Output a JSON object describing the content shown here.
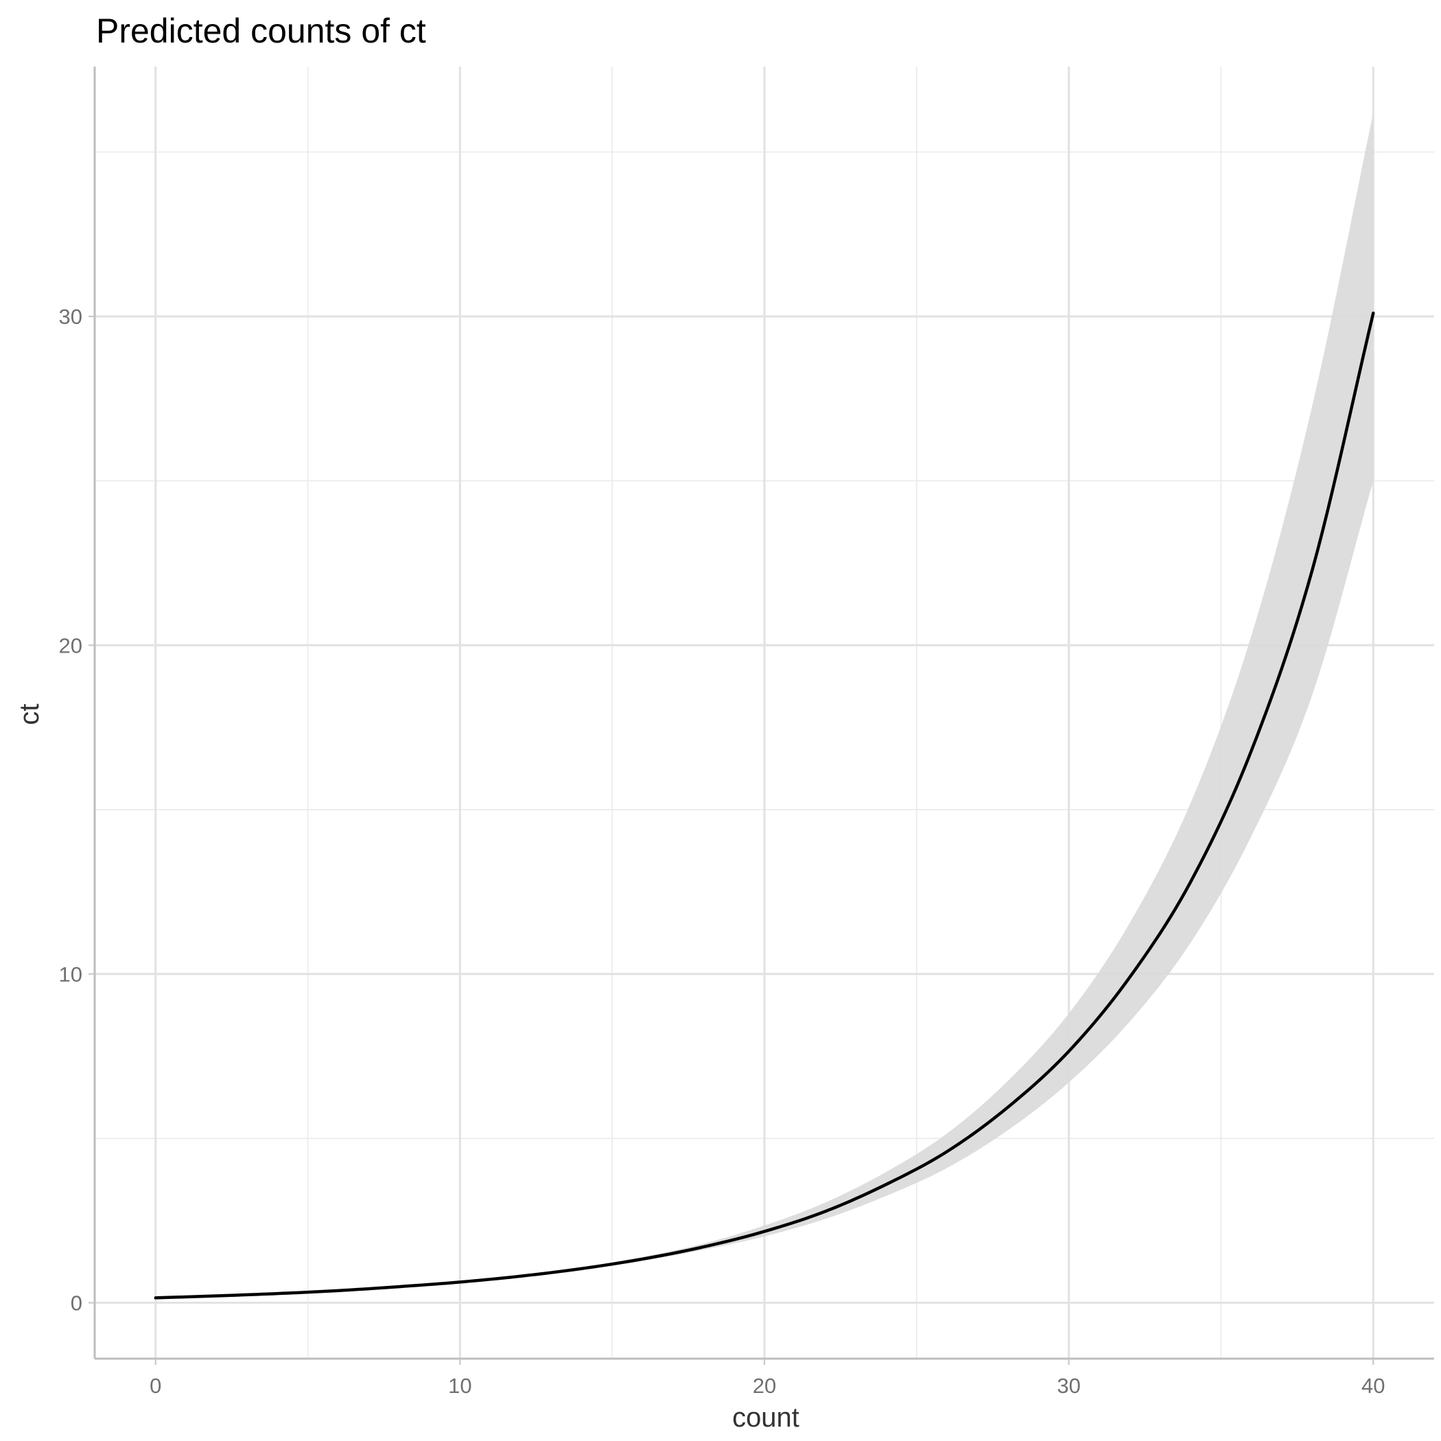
{
  "chart_data": {
    "type": "line",
    "title": "Predicted counts of ct",
    "xlabel": "count",
    "ylabel": "ct",
    "xlim": [
      -2,
      42
    ],
    "ylim": [
      -1.7,
      37.6
    ],
    "x_ticks": [
      0,
      10,
      20,
      30,
      40
    ],
    "y_ticks": [
      0,
      10,
      20,
      30
    ],
    "x_minor_ticks": [
      5,
      15,
      25,
      35
    ],
    "y_minor_ticks": [
      5,
      15,
      25,
      35
    ],
    "grid": true,
    "legend": "none",
    "colors": {
      "line": "#000000",
      "ribbon": "#d9d9d9",
      "grid_major": "#e3e3e3",
      "grid_minor": "#ebebeb",
      "axis": "#bdbdbd"
    },
    "series": [
      {
        "x": [
          0,
          2,
          4,
          6,
          8,
          10,
          12,
          14,
          16,
          18,
          20,
          22,
          24,
          26,
          28,
          30,
          32,
          34,
          36,
          38,
          40
        ],
        "y": [
          0.15,
          0.21,
          0.28,
          0.37,
          0.49,
          0.63,
          0.81,
          1.04,
          1.33,
          1.7,
          2.17,
          2.78,
          3.6,
          4.6,
          5.95,
          7.65,
          9.9,
          12.8,
          16.8,
          22.3,
          30.1
        ],
        "ci_lower": [
          0.14,
          0.19,
          0.26,
          0.35,
          0.47,
          0.61,
          0.79,
          1.01,
          1.28,
          1.61,
          2.02,
          2.55,
          3.25,
          4.1,
          5.25,
          6.7,
          8.55,
          10.95,
          14.2,
          18.5,
          25.0
        ],
        "ci_upper": [
          0.16,
          0.22,
          0.3,
          0.39,
          0.51,
          0.66,
          0.84,
          1.08,
          1.4,
          1.8,
          2.35,
          3.05,
          3.98,
          5.15,
          6.75,
          8.8,
          11.55,
          15.2,
          20.3,
          27.3,
          36.2
        ]
      }
    ]
  }
}
